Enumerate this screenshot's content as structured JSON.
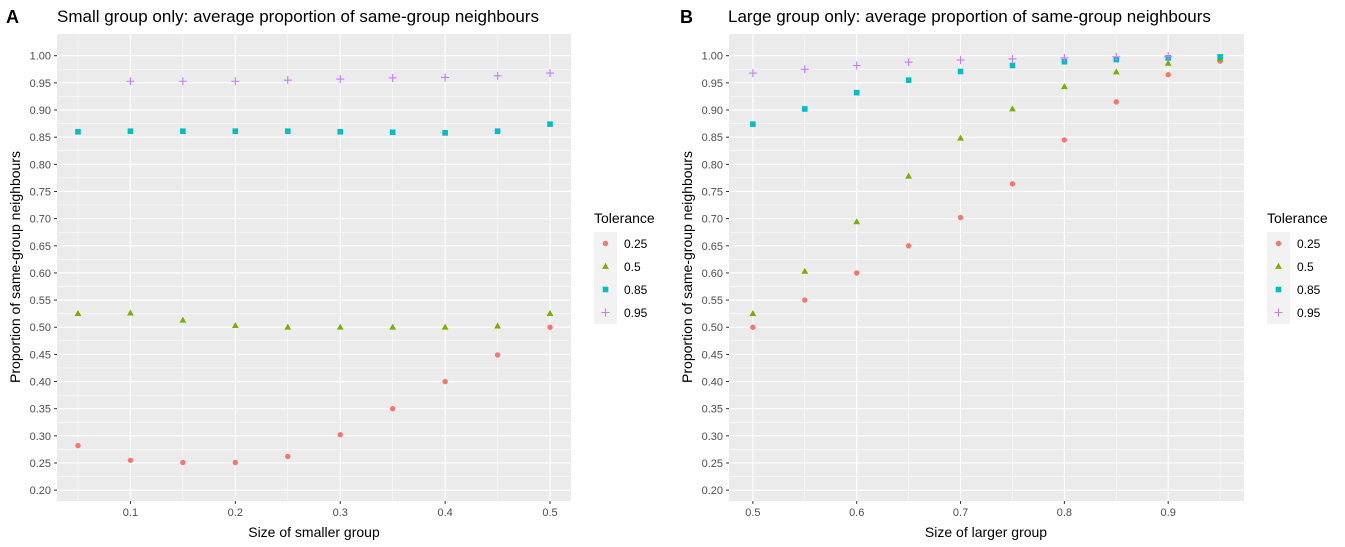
{
  "chart_data": [
    {
      "type": "scatter",
      "panel_tag": "A",
      "title": "Small group only: average proportion of same-group neighbours",
      "xlabel": "Size of smaller group",
      "ylabel": "Proportion of same-group neighbours",
      "xlim": [
        0.03,
        0.52
      ],
      "ylim": [
        0.18,
        1.04
      ],
      "x_ticks": [
        0.1,
        0.2,
        0.3,
        0.4,
        0.5
      ],
      "x_tick_labels": [
        "0.1",
        "0.2",
        "0.3",
        "0.4",
        "0.5"
      ],
      "y_ticks": [
        0.2,
        0.25,
        0.3,
        0.35,
        0.4,
        0.45,
        0.5,
        0.55,
        0.6,
        0.65,
        0.7,
        0.75,
        0.8,
        0.85,
        0.9,
        0.95,
        1.0
      ],
      "y_tick_labels": [
        "0.20",
        "0.25",
        "0.30",
        "0.35",
        "0.40",
        "0.45",
        "0.50",
        "0.55",
        "0.60",
        "0.65",
        "0.70",
        "0.75",
        "0.80",
        "0.85",
        "0.90",
        "0.95",
        "1.00"
      ],
      "grid": true,
      "legend_title": "Tolerance",
      "legend_position": "right",
      "x": [
        0.05,
        0.1,
        0.15,
        0.2,
        0.25,
        0.3,
        0.35,
        0.4,
        0.45,
        0.5
      ],
      "series": [
        {
          "name": "0.25",
          "color": "#F8766D",
          "shape": "circle",
          "values": [
            0.282,
            0.255,
            0.251,
            0.251,
            0.262,
            0.302,
            0.35,
            0.4,
            0.449,
            0.5
          ]
        },
        {
          "name": "0.5",
          "color": "#7CAE00",
          "shape": "triangle",
          "values": [
            0.525,
            0.526,
            0.513,
            0.503,
            0.5,
            0.5,
            0.5,
            0.5,
            0.502,
            0.525
          ]
        },
        {
          "name": "0.85",
          "color": "#00BFC4",
          "shape": "square",
          "values": [
            0.86,
            0.861,
            0.861,
            0.861,
            0.861,
            0.86,
            0.859,
            0.858,
            0.861,
            0.874
          ]
        },
        {
          "name": "0.95",
          "color": "#C77CFF",
          "shape": "plus",
          "values": [
            null,
            0.953,
            0.953,
            0.953,
            0.955,
            0.957,
            0.959,
            0.96,
            0.963,
            0.968
          ]
        }
      ]
    },
    {
      "type": "scatter",
      "panel_tag": "B",
      "title": "Large group only: average proportion of same-group neighbours",
      "xlabel": "Size of larger group",
      "ylabel": "Proportion of same-group neighbours",
      "xlim": [
        0.477,
        0.973
      ],
      "ylim": [
        0.18,
        1.04
      ],
      "x_ticks": [
        0.5,
        0.6,
        0.7,
        0.8,
        0.9
      ],
      "x_tick_labels": [
        "0.5",
        "0.6",
        "0.7",
        "0.8",
        "0.9"
      ],
      "y_ticks": [
        0.2,
        0.25,
        0.3,
        0.35,
        0.4,
        0.45,
        0.5,
        0.55,
        0.6,
        0.65,
        0.7,
        0.75,
        0.8,
        0.85,
        0.9,
        0.95,
        1.0
      ],
      "y_tick_labels": [
        "0.20",
        "0.25",
        "0.30",
        "0.35",
        "0.40",
        "0.45",
        "0.50",
        "0.55",
        "0.60",
        "0.65",
        "0.70",
        "0.75",
        "0.80",
        "0.85",
        "0.90",
        "0.95",
        "1.00"
      ],
      "grid": true,
      "legend_title": "Tolerance",
      "legend_position": "right",
      "x": [
        0.5,
        0.55,
        0.6,
        0.65,
        0.7,
        0.75,
        0.8,
        0.85,
        0.9,
        0.95
      ],
      "series": [
        {
          "name": "0.25",
          "color": "#F8766D",
          "shape": "circle",
          "values": [
            0.5,
            0.55,
            0.6,
            0.65,
            0.702,
            0.764,
            0.845,
            0.915,
            0.965,
            0.99
          ]
        },
        {
          "name": "0.5",
          "color": "#7CAE00",
          "shape": "triangle",
          "values": [
            0.525,
            0.603,
            0.694,
            0.778,
            0.848,
            0.902,
            0.943,
            0.97,
            0.986,
            0.994
          ]
        },
        {
          "name": "0.85",
          "color": "#00BFC4",
          "shape": "square",
          "values": [
            0.874,
            0.902,
            0.932,
            0.955,
            0.971,
            0.982,
            0.989,
            0.993,
            0.996,
            0.998
          ]
        },
        {
          "name": "0.95",
          "color": "#C77CFF",
          "shape": "plus",
          "values": [
            0.968,
            0.975,
            0.982,
            0.988,
            0.992,
            0.994,
            0.996,
            0.998,
            0.999,
            null
          ]
        }
      ]
    }
  ]
}
